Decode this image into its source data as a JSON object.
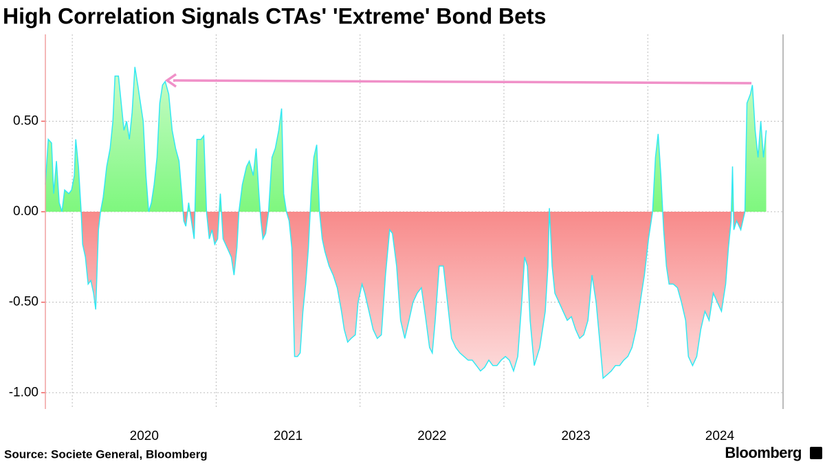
{
  "chart_data": {
    "type": "area",
    "title": "High Correlation Signals CTAs' 'Extreme' Bond Bets",
    "source": "Source: Societe General, Bloomberg",
    "brand": "Bloomberg",
    "x": [
      2019.813,
      2019.833,
      2019.856,
      2019.871,
      2019.89,
      2019.909,
      2019.928,
      2019.947,
      2019.976,
      2019.995,
      2020.014,
      2020.024,
      2020.043,
      2020.062,
      2020.072,
      2020.091,
      2020.11,
      2020.129,
      2020.148,
      2020.163,
      2020.182,
      2020.196,
      2020.215,
      2020.239,
      2020.263,
      2020.282,
      2020.297,
      2020.321,
      2020.34,
      2020.359,
      2020.378,
      2020.397,
      2020.416,
      2020.435,
      2020.455,
      2020.474,
      2020.493,
      2020.512,
      2020.531,
      2020.55,
      2020.569,
      2020.589,
      2020.608,
      2020.627,
      2020.646,
      2020.67,
      2020.694,
      2020.718,
      2020.742,
      2020.761,
      2020.775,
      2020.789,
      2020.809,
      2020.828,
      2020.847,
      2020.866,
      2020.895,
      2020.914,
      2020.933,
      2020.952,
      2020.971,
      2020.99,
      2021.01,
      2021.029,
      2021.048,
      2021.077,
      2021.105,
      2021.124,
      2021.144,
      2021.158,
      2021.182,
      2021.211,
      2021.23,
      2021.258,
      2021.278,
      2021.297,
      2021.311,
      2021.325,
      2021.344,
      2021.364,
      2021.388,
      2021.411,
      2021.435,
      2021.455,
      2021.469,
      2021.488,
      2021.507,
      2021.526,
      2021.545,
      2021.565,
      2021.584,
      2021.603,
      2021.622,
      2021.641,
      2021.66,
      2021.679,
      2021.699,
      2021.718,
      2021.737,
      2021.756,
      2021.785,
      2021.813,
      2021.842,
      2021.871,
      2021.89,
      2021.914,
      2021.938,
      2021.967,
      2021.986,
      2022.014,
      2022.033,
      2022.062,
      2022.091,
      2022.12,
      2022.148,
      2022.177,
      2022.206,
      2022.225,
      2022.254,
      2022.282,
      2022.311,
      2022.34,
      2022.368,
      2022.397,
      2022.426,
      2022.455,
      2022.483,
      2022.502,
      2022.522,
      2022.55,
      2022.579,
      2022.608,
      2022.636,
      2022.665,
      2022.694,
      2022.722,
      2022.751,
      2022.78,
      2022.809,
      2022.837,
      2022.866,
      2022.895,
      2022.923,
      2022.952,
      2022.981,
      2023.01,
      2023.038,
      2023.067,
      2023.096,
      2023.124,
      2023.144,
      2023.163,
      2023.182,
      2023.211,
      2023.23,
      2023.249,
      2023.268,
      2023.287,
      2023.306,
      2023.316,
      2023.335,
      2023.354,
      2023.383,
      2023.411,
      2023.44,
      2023.469,
      2023.498,
      2023.526,
      2023.555,
      2023.584,
      2023.612,
      2023.641,
      2023.67,
      2023.689,
      2023.718,
      2023.746,
      2023.775,
      2023.804,
      2023.833,
      2023.861,
      2023.89,
      2023.919,
      2023.947,
      2023.976,
      2024.005,
      2024.033,
      2024.053,
      2024.072,
      2024.091,
      2024.11,
      2024.129,
      2024.148,
      2024.177,
      2024.206,
      2024.234,
      2024.263,
      2024.282,
      2024.311,
      2024.34,
      2024.368,
      2024.397,
      2024.426,
      2024.455,
      2024.483,
      2024.512,
      2024.541,
      2024.56,
      2024.579,
      2024.589,
      2024.598,
      2024.617,
      2024.646,
      2024.675,
      2024.689,
      2024.713,
      2024.727,
      2024.746,
      2024.766,
      2024.785,
      2024.804,
      2024.823
    ],
    "series": [
      {
        "color": "#33e8f2",
        "values": [
          0.15,
          0.4,
          0.38,
          0.1,
          0.28,
          0.05,
          0.0,
          0.12,
          0.1,
          0.12,
          0.2,
          0.4,
          0.25,
          0.0,
          -0.18,
          -0.25,
          -0.4,
          -0.38,
          -0.45,
          -0.54,
          -0.1,
          0.0,
          0.08,
          0.25,
          0.35,
          0.5,
          0.75,
          0.75,
          0.6,
          0.45,
          0.5,
          0.4,
          0.55,
          0.8,
          0.7,
          0.6,
          0.5,
          0.2,
          0.0,
          0.05,
          0.15,
          0.3,
          0.6,
          0.7,
          0.72,
          0.65,
          0.45,
          0.35,
          0.28,
          0.1,
          -0.05,
          -0.08,
          0.05,
          -0.05,
          -0.15,
          0.4,
          0.4,
          0.42,
          0.0,
          -0.15,
          -0.1,
          -0.18,
          -0.15,
          0.1,
          -0.15,
          -0.2,
          -0.25,
          -0.35,
          -0.2,
          0.0,
          0.15,
          0.25,
          0.28,
          0.2,
          0.35,
          0.1,
          -0.05,
          -0.15,
          -0.12,
          0.0,
          0.3,
          0.35,
          0.45,
          0.57,
          0.1,
          0.0,
          -0.05,
          -0.2,
          -0.8,
          -0.8,
          -0.78,
          -0.55,
          -0.4,
          -0.2,
          0.1,
          0.3,
          0.37,
          0.0,
          -0.15,
          -0.22,
          -0.3,
          -0.35,
          -0.42,
          -0.55,
          -0.65,
          -0.72,
          -0.7,
          -0.68,
          -0.5,
          -0.4,
          -0.45,
          -0.55,
          -0.65,
          -0.7,
          -0.68,
          -0.35,
          -0.1,
          -0.12,
          -0.3,
          -0.6,
          -0.7,
          -0.6,
          -0.5,
          -0.45,
          -0.42,
          -0.58,
          -0.75,
          -0.78,
          -0.6,
          -0.3,
          -0.3,
          -0.5,
          -0.7,
          -0.75,
          -0.78,
          -0.8,
          -0.82,
          -0.82,
          -0.85,
          -0.88,
          -0.86,
          -0.82,
          -0.85,
          -0.85,
          -0.82,
          -0.8,
          -0.82,
          -0.88,
          -0.8,
          -0.5,
          -0.25,
          -0.3,
          -0.6,
          -0.85,
          -0.8,
          -0.75,
          -0.65,
          -0.55,
          -0.3,
          0.02,
          -0.3,
          -0.45,
          -0.5,
          -0.55,
          -0.6,
          -0.58,
          -0.65,
          -0.7,
          -0.68,
          -0.6,
          -0.35,
          -0.5,
          -0.75,
          -0.92,
          -0.9,
          -0.88,
          -0.85,
          -0.85,
          -0.82,
          -0.8,
          -0.75,
          -0.65,
          -0.5,
          -0.35,
          -0.15,
          0.0,
          0.3,
          0.43,
          0.2,
          -0.1,
          -0.3,
          -0.4,
          -0.4,
          -0.42,
          -0.5,
          -0.6,
          -0.8,
          -0.85,
          -0.8,
          -0.65,
          -0.55,
          -0.6,
          -0.45,
          -0.5,
          -0.55,
          -0.4,
          -0.2,
          -0.05,
          0.25,
          -0.1,
          -0.05,
          -0.1,
          0.0,
          0.6,
          0.65,
          0.7,
          0.45,
          0.3,
          0.5,
          0.3,
          0.45
        ]
      }
    ],
    "positive_color": "#7ef77e",
    "negative_color": "#f88a8a",
    "xlim": [
      2019.813,
      2024.94
    ],
    "xticks": [
      2020,
      2021,
      2022,
      2023,
      2024
    ],
    "ylim": [
      -1.09,
      0.98
    ],
    "yticks": [
      {
        "value": 0.5,
        "label": "0.50"
      },
      {
        "value": 0,
        "label": "0.00"
      },
      {
        "value": -0.5,
        "label": "-0.50"
      },
      {
        "value": -1,
        "label": "-1.00"
      }
    ],
    "grid": true
  }
}
